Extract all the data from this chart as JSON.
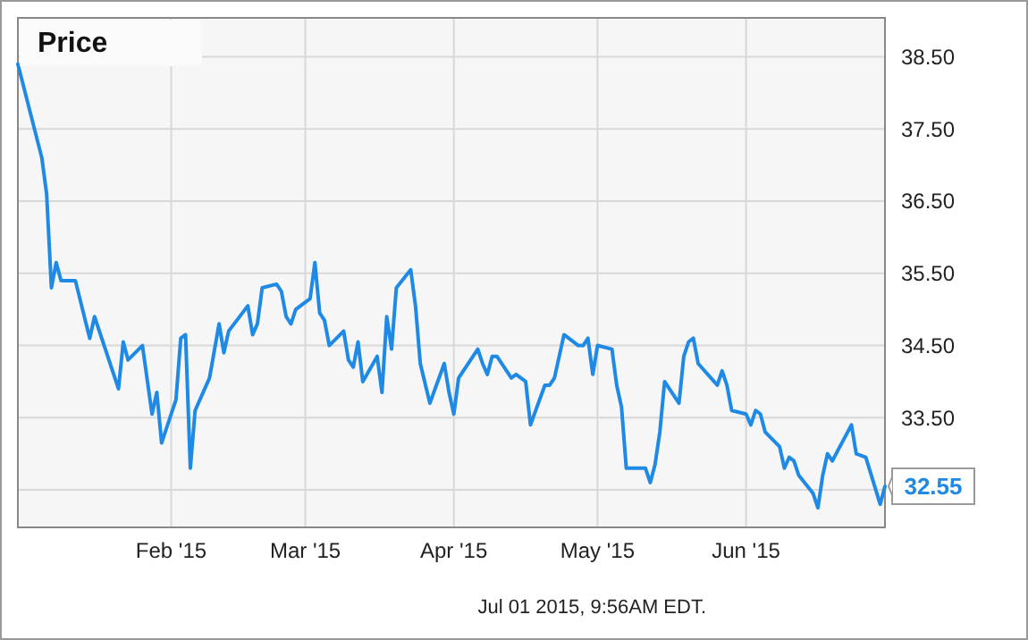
{
  "chart_data": {
    "type": "line",
    "title": "Price",
    "x": [
      "2014-12-31",
      "2015-01-05",
      "2015-01-06",
      "2015-01-07",
      "2015-01-08",
      "2015-01-09",
      "2015-01-12",
      "2015-01-15",
      "2015-01-16",
      "2015-01-21",
      "2015-01-22",
      "2015-01-23",
      "2015-01-26",
      "2015-01-28",
      "2015-01-29",
      "2015-01-30",
      "2015-02-02",
      "2015-02-03",
      "2015-02-04",
      "2015-02-05",
      "2015-02-06",
      "2015-02-09",
      "2015-02-11",
      "2015-02-12",
      "2015-02-13",
      "2015-02-17",
      "2015-02-18",
      "2015-02-19",
      "2015-02-20",
      "2015-02-23",
      "2015-02-24",
      "2015-02-25",
      "2015-02-26",
      "2015-02-27",
      "2015-03-02",
      "2015-03-03",
      "2015-03-04",
      "2015-03-05",
      "2015-03-06",
      "2015-03-09",
      "2015-03-10",
      "2015-03-11",
      "2015-03-12",
      "2015-03-13",
      "2015-03-16",
      "2015-03-17",
      "2015-03-18",
      "2015-03-19",
      "2015-03-20",
      "2015-03-23",
      "2015-03-24",
      "2015-03-25",
      "2015-03-27",
      "2015-03-30",
      "2015-03-31",
      "2015-04-01",
      "2015-04-02",
      "2015-04-06",
      "2015-04-07",
      "2015-04-08",
      "2015-04-09",
      "2015-04-10",
      "2015-04-13",
      "2015-04-14",
      "2015-04-16",
      "2015-04-17",
      "2015-04-20",
      "2015-04-21",
      "2015-04-22",
      "2015-04-24",
      "2015-04-27",
      "2015-04-28",
      "2015-04-29",
      "2015-04-30",
      "2015-05-01",
      "2015-05-04",
      "2015-05-05",
      "2015-05-06",
      "2015-05-07",
      "2015-05-11",
      "2015-05-12",
      "2015-05-13",
      "2015-05-14",
      "2015-05-15",
      "2015-05-18",
      "2015-05-19",
      "2015-05-20",
      "2015-05-21",
      "2015-05-22",
      "2015-05-26",
      "2015-05-27",
      "2015-05-28",
      "2015-05-29",
      "2015-06-01",
      "2015-06-02",
      "2015-06-03",
      "2015-06-04",
      "2015-06-05",
      "2015-06-08",
      "2015-06-09",
      "2015-06-10",
      "2015-06-11",
      "2015-06-12",
      "2015-06-15",
      "2015-06-16",
      "2015-06-17",
      "2015-06-18",
      "2015-06-19",
      "2015-06-23",
      "2015-06-24",
      "2015-06-26",
      "2015-06-29",
      "2015-06-30"
    ],
    "series": [
      {
        "color": "#1f8ae6",
        "values": [
          38.4,
          37.1,
          36.6,
          35.3,
          35.65,
          35.4,
          35.4,
          34.6,
          34.9,
          33.9,
          34.55,
          34.3,
          34.5,
          33.55,
          33.85,
          33.15,
          33.75,
          34.6,
          34.65,
          32.8,
          33.6,
          34.05,
          34.8,
          34.4,
          34.7,
          35.05,
          34.65,
          34.8,
          35.3,
          35.35,
          35.25,
          34.9,
          34.8,
          35.0,
          35.15,
          35.65,
          34.95,
          34.85,
          34.5,
          34.7,
          34.3,
          34.2,
          34.55,
          34.0,
          34.35,
          33.85,
          34.9,
          34.45,
          35.3,
          35.55,
          35.05,
          34.25,
          33.7,
          34.25,
          33.85,
          33.55,
          34.05,
          34.45,
          34.25,
          34.1,
          34.35,
          34.35,
          34.05,
          34.1,
          34.0,
          33.4,
          33.95,
          33.95,
          34.05,
          34.65,
          34.5,
          34.5,
          34.6,
          34.1,
          34.5,
          34.45,
          33.95,
          33.65,
          32.8,
          32.8,
          32.6,
          32.85,
          33.3,
          34.0,
          33.7,
          34.35,
          34.55,
          34.6,
          34.25,
          33.95,
          34.15,
          33.95,
          33.6,
          33.55,
          33.4,
          33.6,
          33.55,
          33.3,
          33.1,
          32.8,
          32.95,
          32.9,
          32.7,
          32.45,
          32.25,
          32.7,
          33.0,
          32.9,
          33.4,
          33.0,
          32.95,
          32.3,
          32.55
        ]
      }
    ],
    "xlim": [
      "2014-12-31",
      "2015-06-30"
    ],
    "xticks": [
      {
        "value": "2015-02-01",
        "label": "Feb '15"
      },
      {
        "value": "2015-03-01",
        "label": "Mar '15"
      },
      {
        "value": "2015-04-01",
        "label": "Apr '15"
      },
      {
        "value": "2015-05-01",
        "label": "May '15"
      },
      {
        "value": "2015-06-01",
        "label": "Jun '15"
      }
    ],
    "ylim": [
      31.98,
      39.04
    ],
    "yticks": [
      {
        "value": 32.5,
        "label": null
      },
      {
        "value": 33.5,
        "label": "33.50"
      },
      {
        "value": 34.5,
        "label": "34.50"
      },
      {
        "value": 35.5,
        "label": "35.50"
      },
      {
        "value": 36.5,
        "label": "36.50"
      },
      {
        "value": 37.5,
        "label": "37.50"
      },
      {
        "value": 38.5,
        "label": "38.50"
      }
    ],
    "grid": true,
    "marker": "none",
    "line_style": "solid",
    "annotations": [
      {
        "text": "32.55",
        "x": "2015-06-30",
        "y": 32.55
      },
      "Jul 01 2015, 9:56AM EDT."
    ]
  }
}
